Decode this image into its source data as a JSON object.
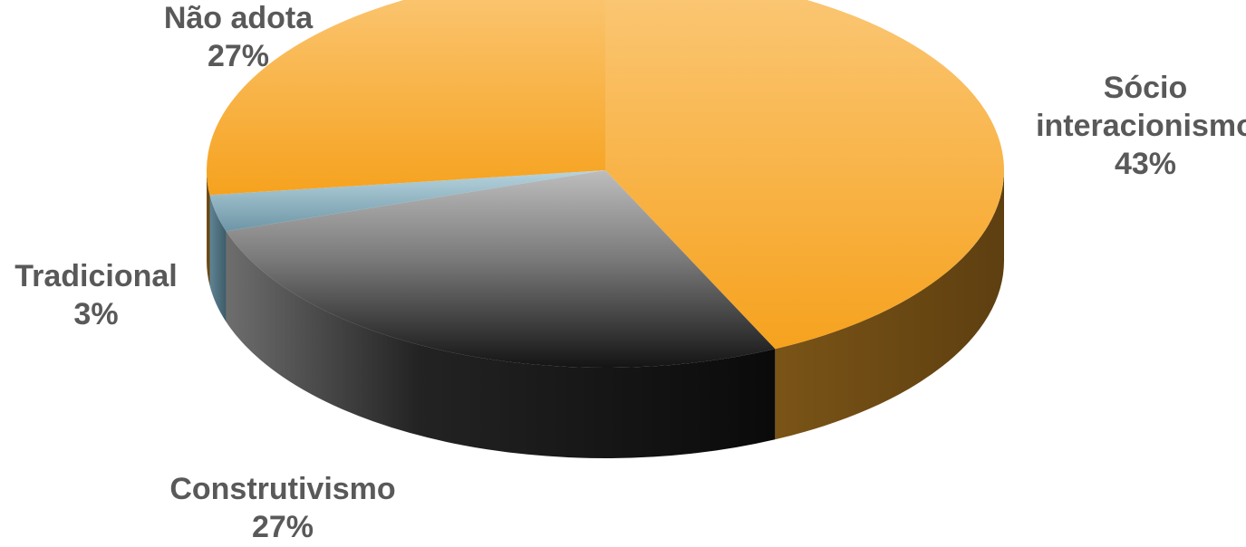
{
  "chart_data": {
    "type": "pie",
    "style": "3d",
    "categories": [
      "Sócio interacionismo",
      "Construtivismo",
      "Tradicional",
      "Não adota"
    ],
    "values": [
      43,
      27,
      3,
      27
    ],
    "value_suffix": "%",
    "label_lines": [
      [
        "Sócio",
        "interacionismo"
      ],
      [
        "Construtivismo"
      ],
      [
        "Tradicional"
      ],
      [
        "Não adota"
      ]
    ],
    "colors": [
      "#F8A83A",
      "#3A3A3A",
      "#8FB8C8",
      "#F8A83A"
    ],
    "legend": "none",
    "title": ""
  }
}
